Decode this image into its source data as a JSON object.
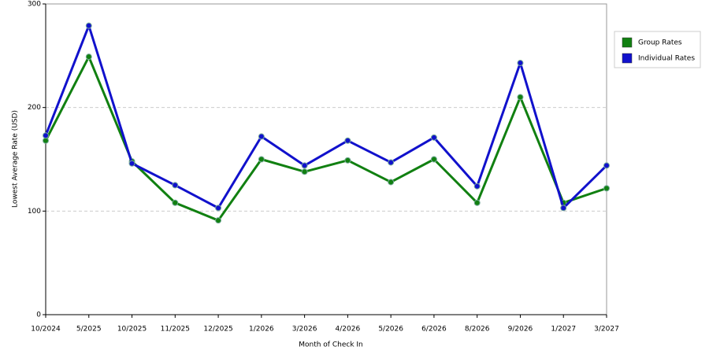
{
  "chart_data": {
    "type": "line",
    "x_label": "Month of Check In",
    "y_label": "Lowest Average Rate (USD)",
    "categories": [
      "10/2024",
      "5/2025",
      "10/2025",
      "11/2025",
      "12/2025",
      "1/2026",
      "3/2026",
      "4/2026",
      "5/2026",
      "6/2026",
      "8/2026",
      "9/2026",
      "1/2027",
      "3/2027"
    ],
    "series": [
      {
        "name": "Group Rates",
        "color": "#118011",
        "values": [
          168,
          249,
          148,
          108,
          91,
          150,
          138,
          149,
          128,
          150,
          108,
          210,
          108,
          122
        ]
      },
      {
        "name": "Individual Rates",
        "color": "#1111cc",
        "values": [
          173,
          279,
          146,
          125,
          103,
          172,
          144,
          168,
          147,
          171,
          124,
          243,
          103,
          144
        ]
      }
    ],
    "ylim": [
      0,
      300
    ],
    "yticks": [
      0,
      100,
      200,
      300
    ],
    "grid": true,
    "legend": "top-right"
  }
}
